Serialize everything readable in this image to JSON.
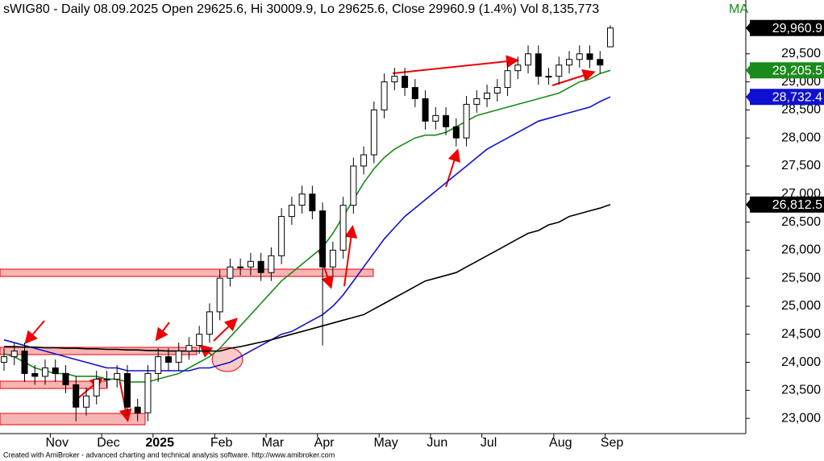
{
  "chart_data": {
    "type": "candlestick",
    "title": "sWIG80 - Daily 08.09.2025 Open 29625.6, Hi 30009.9, Lo 29625.6, Close 29960.9 (1.4%) Vol 8,135,773",
    "title_suffix": "MA",
    "footer": "Created with AmiBroker - advanced charting and technical analysis software. http://www.amibroker.com",
    "categories": [
      null,
      null,
      null,
      null,
      null,
      "Nov",
      null,
      null,
      null,
      null,
      "Dec",
      null,
      null,
      null,
      null,
      "2025",
      null,
      null,
      null,
      null,
      null,
      "Feb",
      null,
      null,
      null,
      null,
      "Mar",
      null,
      null,
      null,
      null,
      "Apr",
      null,
      null,
      null,
      null,
      null,
      "May",
      null,
      null,
      null,
      null,
      "Jun",
      null,
      null,
      null,
      null,
      "Jul",
      null,
      null,
      null,
      null,
      null,
      null,
      "Aug",
      null,
      null,
      null,
      null,
      "Sep"
    ],
    "open": [
      24000,
      24100,
      24200,
      23800,
      23750,
      23900,
      23800,
      23600,
      23200,
      23400,
      23700,
      23700,
      23800,
      23200,
      23100,
      23800,
      24100,
      24000,
      24200,
      24300,
      24500,
      24900,
      25500,
      25700,
      25700,
      25800,
      25600,
      25900,
      26600,
      26800,
      27000,
      26700,
      25700,
      26000,
      26800,
      27500,
      27700,
      28500,
      29000,
      29100,
      28900,
      28700,
      28300,
      28400,
      28200,
      28000,
      28600,
      28700,
      28800,
      28900,
      29200,
      29300,
      29500,
      29100,
      29100,
      29300,
      29400,
      29500,
      29400,
      29625.6
    ],
    "high": [
      24250,
      24350,
      24350,
      23950,
      24050,
      24050,
      23950,
      23750,
      23550,
      23850,
      23850,
      23950,
      23950,
      23350,
      23950,
      24250,
      24250,
      24350,
      24450,
      24650,
      25050,
      25650,
      25850,
      25850,
      25950,
      25950,
      26050,
      26750,
      26950,
      27150,
      27150,
      26850,
      26150,
      26950,
      27650,
      27850,
      28650,
      29150,
      29250,
      29250,
      29050,
      28850,
      28550,
      28550,
      28350,
      28750,
      28850,
      28950,
      29050,
      29350,
      29450,
      29650,
      29650,
      29250,
      29450,
      29550,
      29650,
      29650,
      29550,
      30009.9
    ],
    "low": [
      23850,
      23950,
      23650,
      23600,
      23600,
      23650,
      23450,
      22950,
      23050,
      23250,
      23550,
      23550,
      23050,
      22950,
      22950,
      23650,
      23850,
      23850,
      24050,
      24150,
      24350,
      24750,
      25350,
      25550,
      25550,
      25450,
      25450,
      25750,
      26450,
      26650,
      26550,
      24300,
      25550,
      25850,
      26650,
      27350,
      27550,
      28350,
      28850,
      28750,
      28550,
      28150,
      28150,
      28050,
      27850,
      27850,
      28450,
      28550,
      28650,
      28750,
      29050,
      29150,
      28950,
      28950,
      28950,
      29150,
      29250,
      29250,
      29150,
      29625.6
    ],
    "close": [
      24100,
      24200,
      23800,
      23750,
      23900,
      23800,
      23600,
      23200,
      23400,
      23700,
      23700,
      23800,
      23200,
      23100,
      23800,
      24100,
      24000,
      24200,
      24300,
      24500,
      24900,
      25500,
      25700,
      25700,
      25800,
      25600,
      25900,
      26600,
      26800,
      27000,
      26700,
      25700,
      26000,
      26800,
      27500,
      27700,
      28500,
      29000,
      29100,
      28900,
      28700,
      28300,
      28400,
      28200,
      28000,
      28600,
      28700,
      28800,
      28900,
      29200,
      29300,
      29500,
      29100,
      29100,
      29300,
      29400,
      29500,
      29400,
      29300,
      29960.9
    ],
    "close_label": "29,960.9",
    "series": [
      {
        "color": "#1a8a1a",
        "last_label": "29,205.5",
        "values": [
          24150,
          24100,
          24000,
          23900,
          23850,
          23800,
          23800,
          23750,
          23750,
          23750,
          23700,
          23700,
          23650,
          23650,
          23650,
          23700,
          23750,
          23800,
          23900,
          24000,
          24100,
          24250,
          24450,
          24650,
          24850,
          25050,
          25250,
          25450,
          25600,
          25750,
          25900,
          26050,
          26300,
          26600,
          26900,
          27200,
          27450,
          27650,
          27800,
          27900,
          28000,
          28050,
          28050,
          28100,
          28200,
          28300,
          28400,
          28450,
          28500,
          28550,
          28600,
          28650,
          28700,
          28750,
          28800,
          28900,
          29000,
          29050,
          29150,
          29205.5
        ]
      },
      {
        "color": "#1010d0",
        "last_label": "28,732.4",
        "values": [
          24400,
          24350,
          24300,
          24250,
          24200,
          24150,
          24100,
          24050,
          24000,
          23950,
          23900,
          23900,
          23850,
          23850,
          23850,
          23850,
          23850,
          23850,
          23850,
          23900,
          23900,
          23950,
          24000,
          24100,
          24200,
          24300,
          24400,
          24500,
          24550,
          24650,
          24750,
          24850,
          25000,
          25200,
          25450,
          25700,
          25950,
          26200,
          26400,
          26600,
          26750,
          26900,
          27050,
          27200,
          27350,
          27500,
          27650,
          27800,
          27900,
          28000,
          28100,
          28200,
          28300,
          28350,
          28400,
          28450,
          28500,
          28550,
          28650,
          28732.4
        ]
      },
      {
        "color": "#000000",
        "last_label": "26,812.5",
        "values": [
          24280,
          24280,
          24270,
          24270,
          24260,
          24260,
          24250,
          24250,
          24240,
          24240,
          24230,
          24230,
          24220,
          24220,
          24210,
          24210,
          24200,
          24200,
          24200,
          24200,
          24200,
          24200,
          24250,
          24280,
          24320,
          24360,
          24400,
          24450,
          24500,
          24550,
          24600,
          24650,
          24700,
          24750,
          24800,
          24850,
          24950,
          25050,
          25150,
          25250,
          25350,
          25450,
          25500,
          25550,
          25600,
          25700,
          25800,
          25900,
          26000,
          26100,
          26200,
          26300,
          26350,
          26450,
          26500,
          26600,
          26650,
          26700,
          26750,
          26812.5
        ]
      }
    ],
    "ylim": [
      22700,
      30460
    ],
    "yticks": [
      {
        "value": 23000,
        "label": "23,000"
      },
      {
        "value": 23500,
        "label": "23,500"
      },
      {
        "value": 24000,
        "label": "24,000"
      },
      {
        "value": 24500,
        "label": "24,500"
      },
      {
        "value": 25000,
        "label": "25,000"
      },
      {
        "value": 25500,
        "label": "25,500"
      },
      {
        "value": 26000,
        "label": "26,000"
      },
      {
        "value": 26500,
        "label": "26,500"
      },
      {
        "value": 27000,
        "label": "27,000"
      },
      {
        "value": 27500,
        "label": "27,500"
      },
      {
        "value": 28000,
        "label": "28,000"
      },
      {
        "value": 28500,
        "label": "28,500"
      },
      {
        "value": 29000,
        "label": "29,000"
      },
      {
        "value": 29500,
        "label": "29,500"
      }
    ]
  }
}
